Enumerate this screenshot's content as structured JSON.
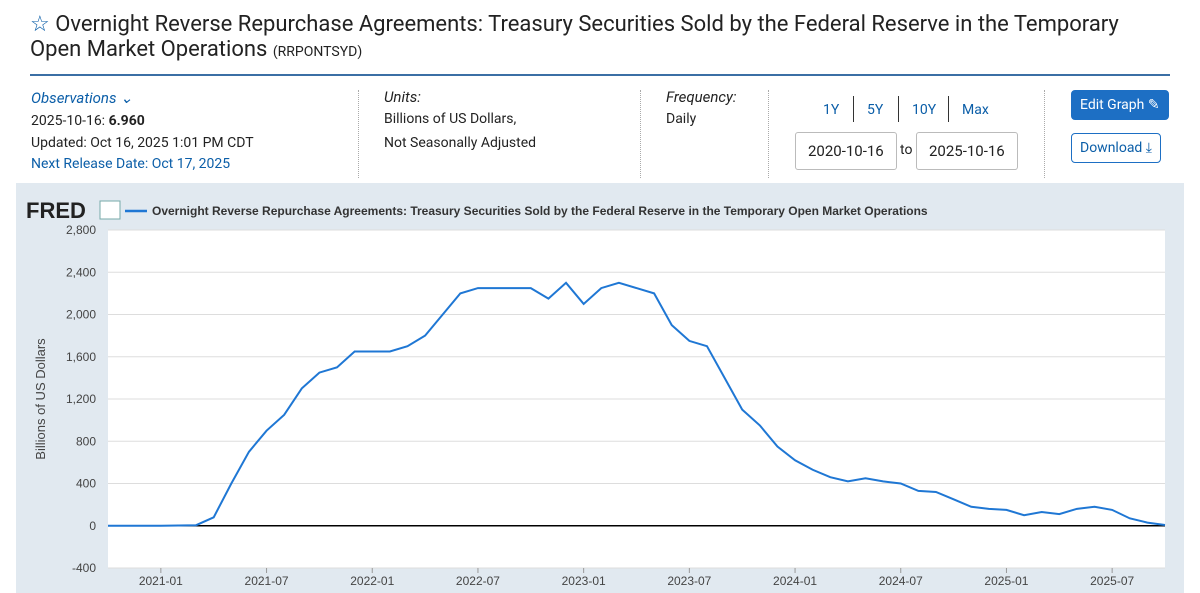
{
  "header": {
    "title": "Overnight Reverse Repurchase Agreements: Treasury Securities Sold by the Federal Reserve in the Temporary Open Market Operations",
    "series_id": "(RRPONTSYD)"
  },
  "observations": {
    "label": "Observations",
    "date": "2025-10-16:",
    "value": "6.960",
    "updated": "Updated: Oct 16, 2025 1:01 PM CDT",
    "next_release": "Next Release Date: Oct 17, 2025"
  },
  "units": {
    "label": "Units:",
    "lines": [
      "Billions of US Dollars,",
      "Not Seasonally Adjusted"
    ]
  },
  "frequency": {
    "label": "Frequency:",
    "value": "Daily"
  },
  "range_buttons": [
    "1Y",
    "5Y",
    "10Y",
    "Max"
  ],
  "date_from": "2020-10-16",
  "to_label": "to",
  "date_to": "2025-10-16",
  "buttons": {
    "edit": "Edit Graph",
    "download": "Download"
  },
  "chart_data": {
    "type": "line",
    "brand": "FRED",
    "series": [
      {
        "name": "Overnight Reverse Repurchase Agreements: Treasury Securities Sold by the Federal Reserve in the Temporary Open Market Operations",
        "color": "#1f77d4",
        "values": [
          0,
          0,
          0,
          0,
          2,
          5,
          80,
          400,
          700,
          900,
          1050,
          1300,
          1450,
          1500,
          1650,
          1650,
          1650,
          1700,
          1800,
          2000,
          2200,
          2250,
          2250,
          2250,
          2250,
          2150,
          2300,
          2100,
          2250,
          2300,
          2250,
          2200,
          1900,
          1750,
          1700,
          1400,
          1100,
          950,
          750,
          620,
          530,
          460,
          420,
          450,
          420,
          400,
          330,
          320,
          250,
          180,
          160,
          150,
          100,
          130,
          110,
          160,
          180,
          150,
          70,
          30,
          7
        ]
      }
    ],
    "x": [
      "2020-10",
      "2020-11",
      "2020-12",
      "2021-01",
      "2021-02",
      "2021-03",
      "2021-04",
      "2021-05",
      "2021-06",
      "2021-07",
      "2021-08",
      "2021-09",
      "2021-10",
      "2021-11",
      "2021-12",
      "2022-01",
      "2022-02",
      "2022-03",
      "2022-04",
      "2022-05",
      "2022-06",
      "2022-07",
      "2022-08",
      "2022-09",
      "2022-10",
      "2022-11",
      "2022-12",
      "2023-01",
      "2023-02",
      "2023-03",
      "2023-04",
      "2023-05",
      "2023-06",
      "2023-07",
      "2023-08",
      "2023-09",
      "2023-10",
      "2023-11",
      "2023-12",
      "2024-01",
      "2024-02",
      "2024-03",
      "2024-04",
      "2024-05",
      "2024-06",
      "2024-07",
      "2024-08",
      "2024-09",
      "2024-10",
      "2024-11",
      "2024-12",
      "2025-01",
      "2025-02",
      "2025-03",
      "2025-04",
      "2025-05",
      "2025-06",
      "2025-07",
      "2025-08",
      "2025-09",
      "2025-10"
    ],
    "xlim": [
      "2020-10",
      "2025-10"
    ],
    "xticks": [
      "2021-01",
      "2021-07",
      "2022-01",
      "2022-07",
      "2023-01",
      "2023-07",
      "2024-01",
      "2024-07",
      "2025-01",
      "2025-07"
    ],
    "ylabel": "Billions of US Dollars",
    "ylim": [
      -400,
      2800
    ],
    "yticks": [
      -400,
      0,
      {
        "value": 400,
        "label": "400"
      },
      {
        "value": 800,
        "label": "800"
      },
      {
        "value": 1200,
        "label": "1,200"
      },
      {
        "value": 1600,
        "label": "1,600"
      },
      {
        "value": 2000,
        "label": "2,000"
      },
      {
        "value": 2400,
        "label": "2,400"
      },
      {
        "value": 2800,
        "label": "2,800"
      }
    ],
    "grid": true
  }
}
